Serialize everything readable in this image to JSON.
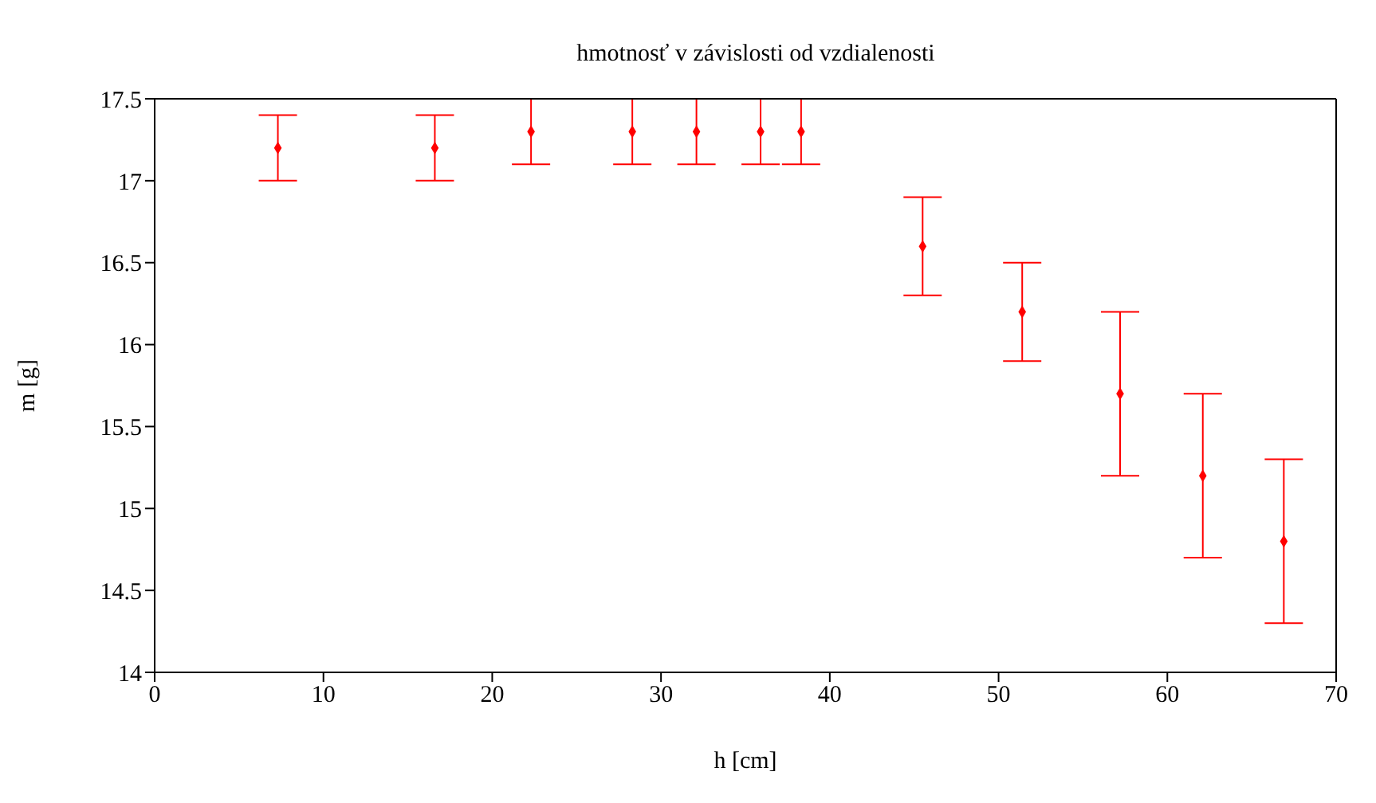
{
  "chart_data": {
    "type": "scatter",
    "title": "hmotnosť v závislosti od vzdialenosti",
    "xlabel": "h [cm]",
    "ylabel": "m [g]",
    "x": [
      7.3,
      16.6,
      22.3,
      28.3,
      32.1,
      35.9,
      38.3,
      45.5,
      51.4,
      57.2,
      62.1,
      66.9
    ],
    "values": [
      17.2,
      17.2,
      17.3,
      17.3,
      17.3,
      17.3,
      17.3,
      16.6,
      16.2,
      15.7,
      15.2,
      14.8
    ],
    "errors": [
      0.2,
      0.2,
      0.2,
      0.2,
      0.2,
      0.2,
      0.2,
      0.3,
      0.3,
      0.5,
      0.5,
      0.5
    ],
    "color": "#ff0000",
    "marker": "diamond",
    "xlim": [
      0,
      70
    ],
    "ylim": [
      14,
      17.5
    ],
    "xticks": [
      0,
      10,
      20,
      30,
      40,
      50,
      60,
      70
    ],
    "yticks": [
      14,
      14.5,
      15,
      15.5,
      16,
      16.5,
      17,
      17.5
    ]
  }
}
